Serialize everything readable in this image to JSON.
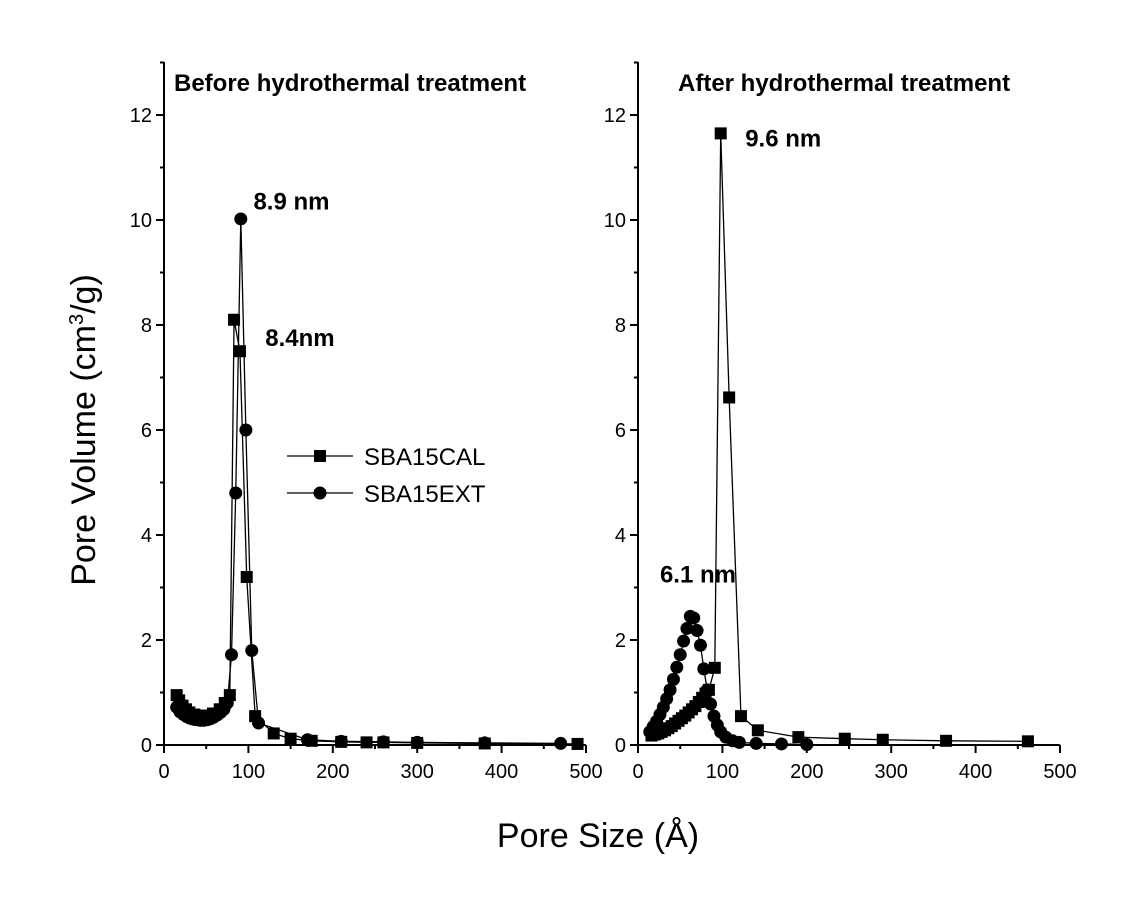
{
  "chart_data": {
    "type": "scatter",
    "xlabel": "Pore Size (Å)",
    "ylabel": "Pore Volume (cm³/g)",
    "xlim": [
      0,
      500
    ],
    "ylim": [
      0,
      13
    ],
    "xticks": [
      "0",
      "100",
      "200",
      "300",
      "400",
      "500"
    ],
    "yticks": [
      "0",
      "2",
      "4",
      "6",
      "8",
      "10",
      "12"
    ],
    "legend": {
      "placement": "center",
      "entries": [
        {
          "name": "SBA15CAL",
          "marker": "square"
        },
        {
          "name": "SBA15EXT",
          "marker": "circle"
        }
      ]
    },
    "panels": [
      {
        "title": "Before hydrothermal treatment",
        "annotations": [
          {
            "text": "8.9 nm",
            "x": 106,
            "y": 10.2
          },
          {
            "text": "8.4nm",
            "x": 120,
            "y": 7.6
          }
        ],
        "series": [
          {
            "name": "SBA15CAL",
            "marker": "square",
            "x": [
              15,
              18,
              22,
              26,
              30,
              36,
              42,
              50,
              58,
              66,
              72,
              78,
              83,
              90,
              98,
              108,
              130,
              150,
              175,
              210,
              240,
              260,
              300,
              380,
              490
            ],
            "y": [
              0.95,
              0.85,
              0.75,
              0.68,
              0.62,
              0.58,
              0.56,
              0.56,
              0.6,
              0.68,
              0.8,
              0.95,
              8.1,
              7.5,
              3.2,
              0.55,
              0.22,
              0.12,
              0.08,
              0.06,
              0.05,
              0.05,
              0.04,
              0.03,
              0.02
            ]
          },
          {
            "name": "SBA15EXT",
            "marker": "circle",
            "x": [
              15,
              19,
              23,
              27,
              31,
              35,
              39,
              43,
              47,
              51,
              55,
              59,
              63,
              67,
              71,
              75,
              80,
              85,
              91,
              97,
              104,
              112,
              170,
              210,
              260,
              300,
              380,
              470
            ],
            "y": [
              0.72,
              0.63,
              0.58,
              0.54,
              0.51,
              0.49,
              0.48,
              0.47,
              0.47,
              0.48,
              0.5,
              0.53,
              0.57,
              0.62,
              0.68,
              0.8,
              1.72,
              4.8,
              10.02,
              6.0,
              1.8,
              0.42,
              0.1,
              0.07,
              0.06,
              0.05,
              0.04,
              0.03
            ]
          }
        ]
      },
      {
        "title": "After hydrothermal treatment",
        "annotations": [
          {
            "text": "9.6 nm",
            "x": 127,
            "y": 11.4
          },
          {
            "text": "6.1 nm",
            "x": 26,
            "y": 3.1
          }
        ],
        "series": [
          {
            "name": "SBA15CAL",
            "marker": "square",
            "x": [
              16,
              20,
              24,
              28,
              32,
              36,
              40,
              44,
              48,
              52,
              56,
              60,
              64,
              68,
              72,
              76,
              80,
              84,
              91,
              98,
              108,
              122,
              142,
              190,
              245,
              290,
              365,
              462
            ],
            "y": [
              0.18,
              0.2,
              0.22,
              0.25,
              0.28,
              0.32,
              0.36,
              0.41,
              0.46,
              0.51,
              0.56,
              0.62,
              0.68,
              0.74,
              0.82,
              0.9,
              0.98,
              1.05,
              1.47,
              11.65,
              6.62,
              0.55,
              0.28,
              0.15,
              0.12,
              0.1,
              0.08,
              0.07
            ]
          },
          {
            "name": "SBA15EXT",
            "marker": "circle",
            "x": [
              14,
              18,
              22,
              26,
              30,
              34,
              38,
              42,
              46,
              50,
              54,
              58,
              62,
              66,
              70,
              74,
              78,
              82,
              86,
              90,
              94,
              98,
              104,
              112,
              120,
              140,
              170,
              200
            ],
            "y": [
              0.25,
              0.35,
              0.45,
              0.58,
              0.72,
              0.88,
              1.05,
              1.25,
              1.48,
              1.72,
              1.98,
              2.22,
              2.45,
              2.42,
              2.18,
              1.9,
              1.45,
              1.05,
              0.78,
              0.55,
              0.38,
              0.25,
              0.15,
              0.08,
              0.05,
              0.03,
              0.02,
              0.01
            ]
          }
        ]
      }
    ]
  }
}
